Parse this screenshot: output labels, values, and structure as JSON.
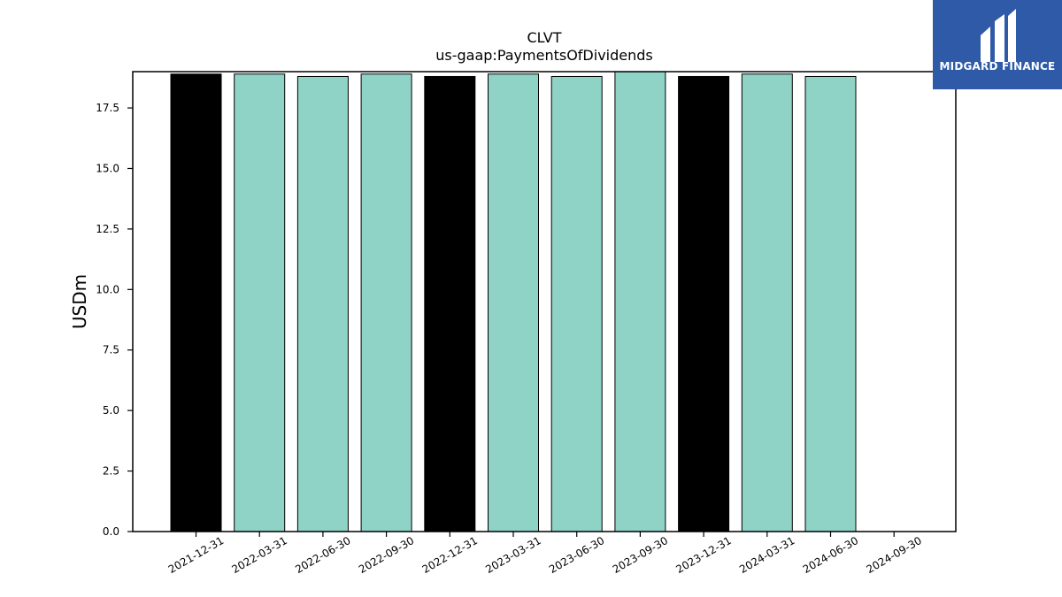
{
  "chart_data": {
    "type": "bar",
    "title": "CLVT",
    "subtitle": "us-gaap:PaymentsOfDividends",
    "xlabel": "",
    "ylabel": "USDm",
    "ylim": [
      0,
      19.0
    ],
    "yticks": [
      0.0,
      2.5,
      5.0,
      7.5,
      10.0,
      12.5,
      15.0,
      17.5
    ],
    "ytick_labels": [
      "0.0",
      "2.5",
      "5.0",
      "7.5",
      "10.0",
      "12.5",
      "15.0",
      "17.5"
    ],
    "categories": [
      "2021-12-31",
      "2022-03-31",
      "2022-06-30",
      "2022-09-30",
      "2022-12-31",
      "2023-03-31",
      "2023-06-30",
      "2023-09-30",
      "2023-12-31",
      "2024-03-31",
      "2024-06-30",
      "2024-09-30"
    ],
    "values": [
      18.9,
      18.9,
      18.8,
      18.9,
      18.8,
      18.9,
      18.8,
      19.0,
      18.8,
      18.9,
      18.8,
      null
    ],
    "bar_colors": [
      "#000000",
      "#8fd3c7",
      "#8fd3c7",
      "#8fd3c7",
      "#000000",
      "#8fd3c7",
      "#8fd3c7",
      "#8fd3c7",
      "#000000",
      "#8fd3c7",
      "#8fd3c7",
      "#8fd3c7"
    ],
    "grid": false,
    "legend": "none"
  },
  "logo": {
    "text": "MIDGARD FINANCE",
    "background": "#2f5aa8"
  }
}
